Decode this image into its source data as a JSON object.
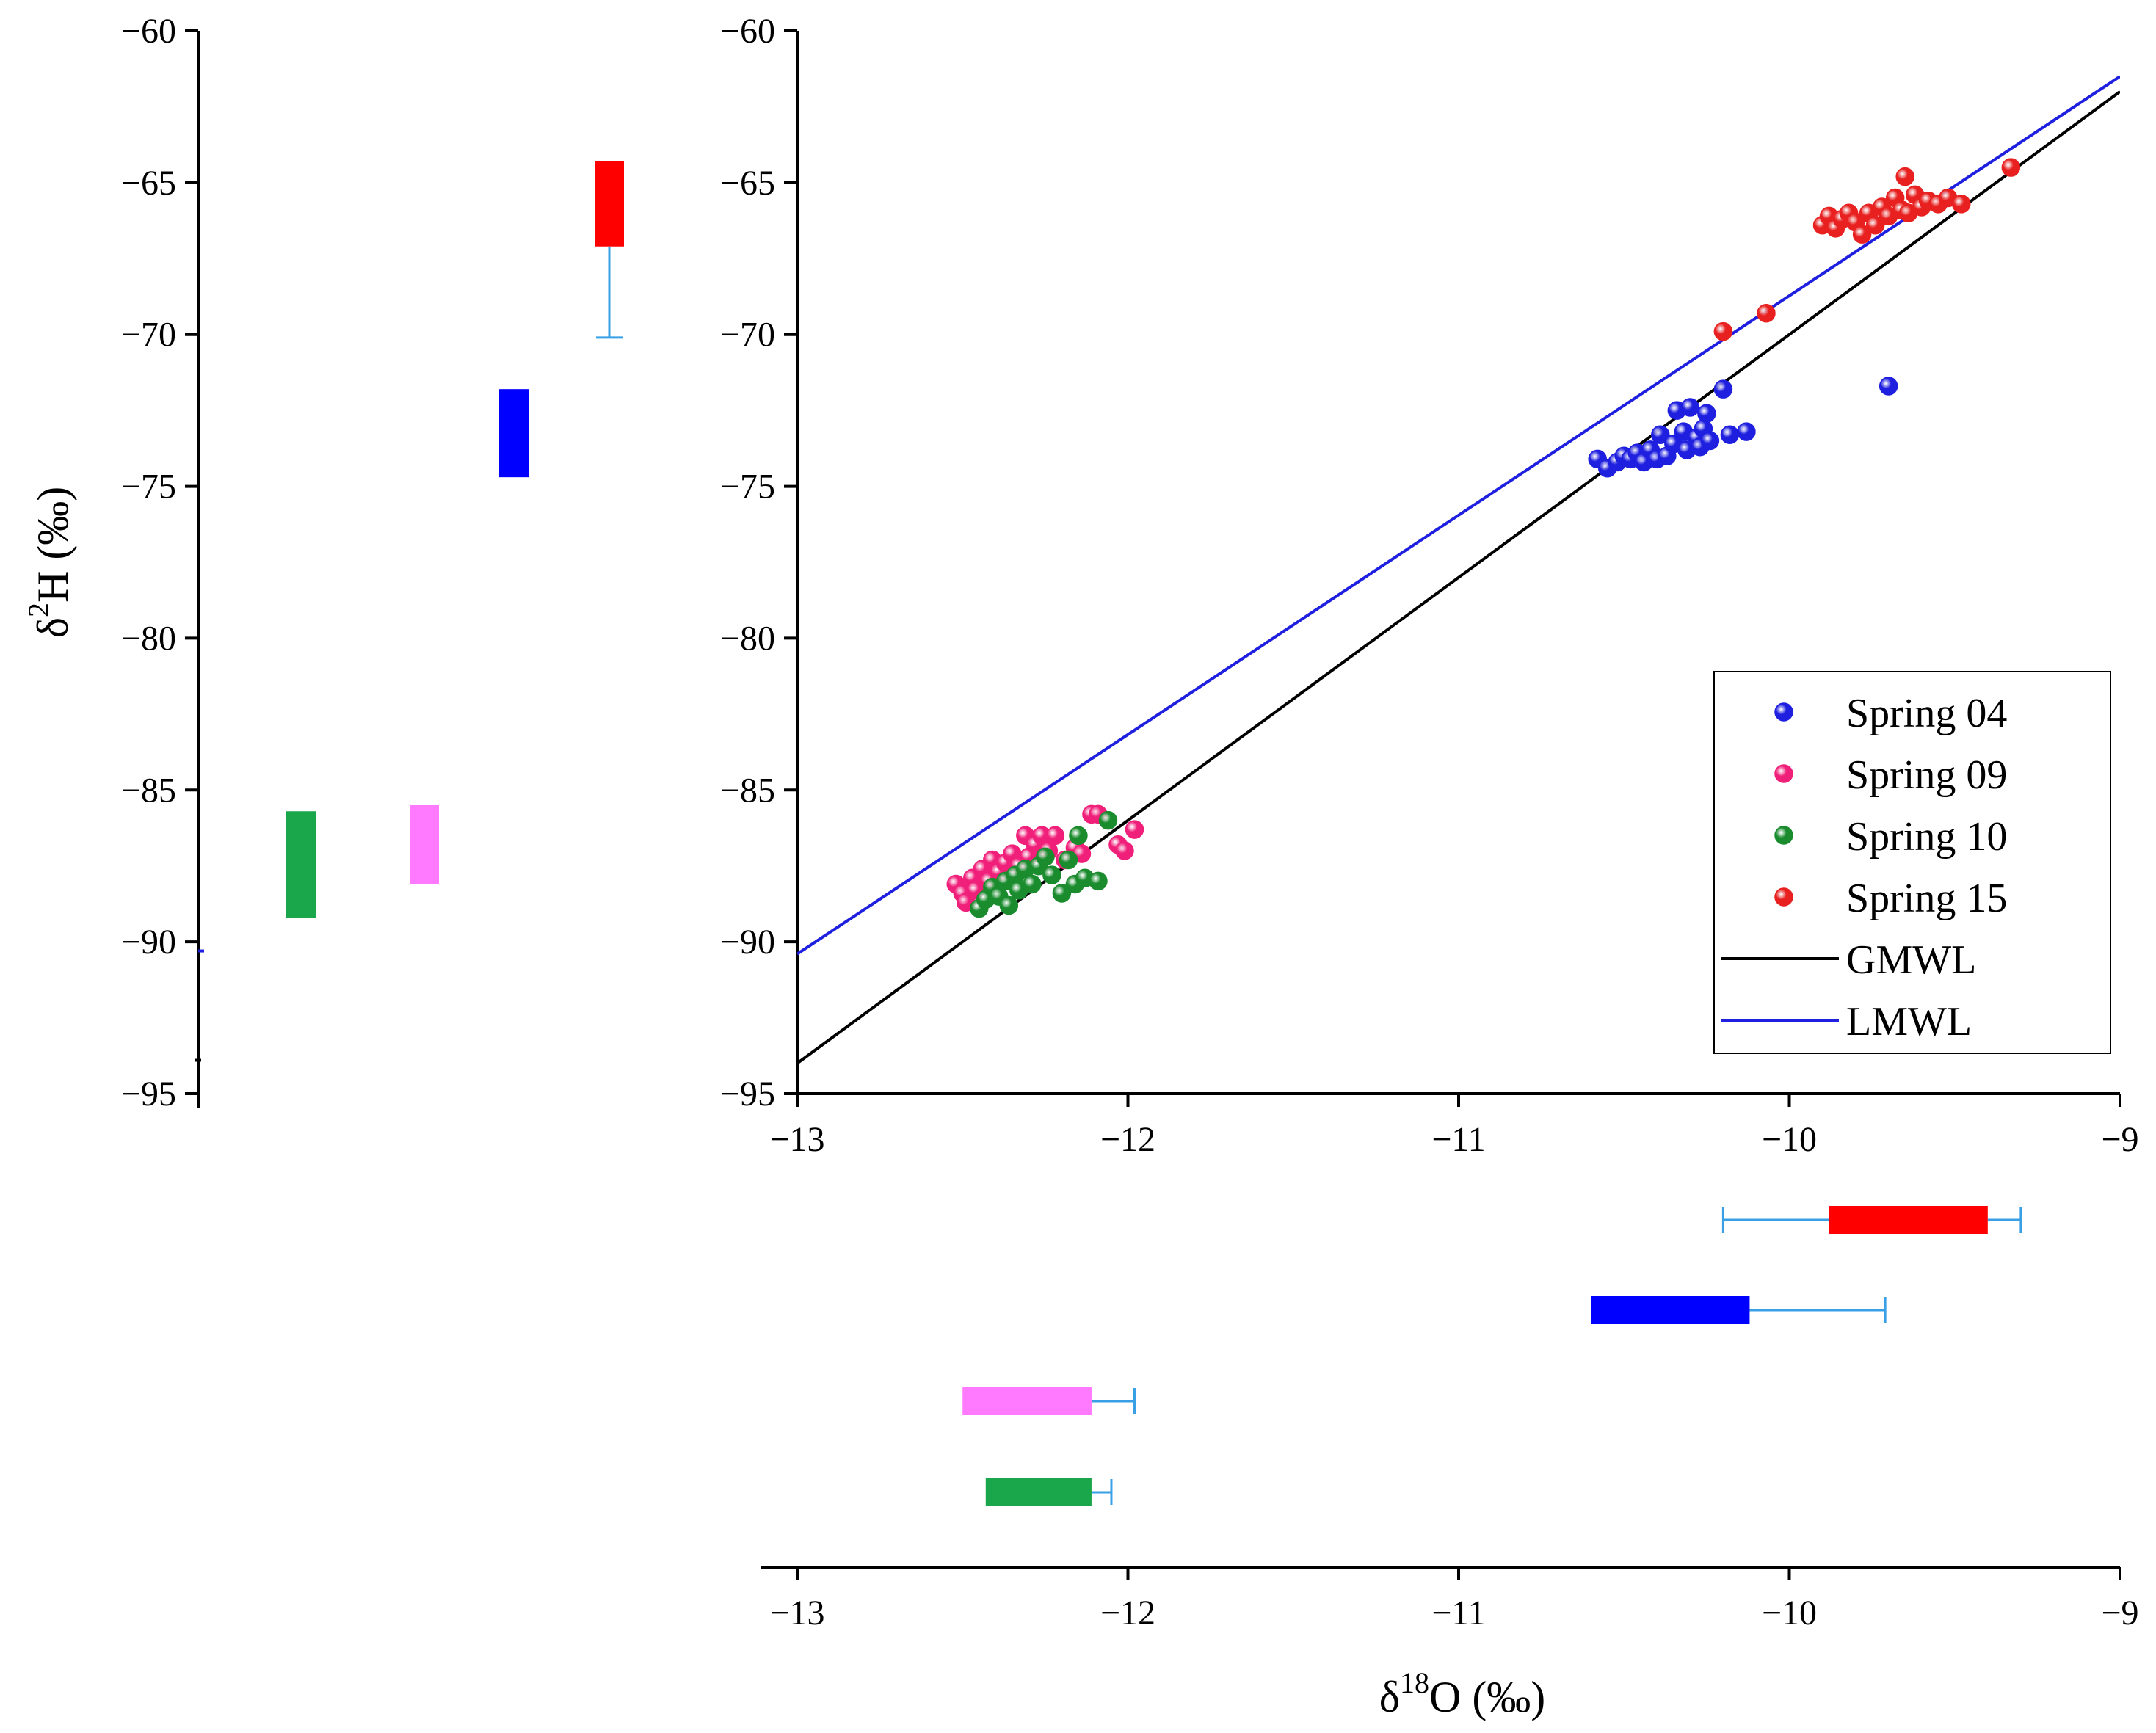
{
  "chart_data": {
    "type": "scatter",
    "main_plot": {
      "xlim": [
        -13,
        -9
      ],
      "ylim": [
        -95,
        -60
      ],
      "xticks": [
        "−13",
        "−12",
        "−11",
        "−10",
        "−9"
      ],
      "yticks": [
        "−60",
        "−65",
        "−70",
        "−75",
        "−80",
        "−85",
        "−90",
        "−95"
      ],
      "series": [
        {
          "name": "Spring 04",
          "color": "#1f1fe0",
          "points": [
            [
              -10.58,
              -74.1
            ],
            [
              -10.55,
              -74.4
            ],
            [
              -10.52,
              -74.2
            ],
            [
              -10.5,
              -74.0
            ],
            [
              -10.48,
              -74.1
            ],
            [
              -10.46,
              -73.9
            ],
            [
              -10.44,
              -74.2
            ],
            [
              -10.42,
              -73.8
            ],
            [
              -10.4,
              -74.1
            ],
            [
              -10.39,
              -73.3
            ],
            [
              -10.37,
              -74.0
            ],
            [
              -10.35,
              -73.6
            ],
            [
              -10.34,
              -72.5
            ],
            [
              -10.32,
              -73.2
            ],
            [
              -10.31,
              -73.8
            ],
            [
              -10.3,
              -72.4
            ],
            [
              -10.28,
              -73.4
            ],
            [
              -10.27,
              -73.7
            ],
            [
              -10.26,
              -73.1
            ],
            [
              -10.25,
              -72.6
            ],
            [
              -10.24,
              -73.5
            ],
            [
              -10.2,
              -71.8
            ],
            [
              -10.18,
              -73.3
            ],
            [
              -10.13,
              -73.2
            ],
            [
              -9.7,
              -71.7
            ]
          ]
        },
        {
          "name": "Spring 09",
          "color": "#f0207a",
          "points": [
            [
              -12.52,
              -88.1
            ],
            [
              -12.5,
              -88.4
            ],
            [
              -12.49,
              -88.7
            ],
            [
              -12.47,
              -87.9
            ],
            [
              -12.46,
              -88.3
            ],
            [
              -12.44,
              -87.6
            ],
            [
              -12.42,
              -88.0
            ],
            [
              -12.41,
              -87.3
            ],
            [
              -12.39,
              -87.7
            ],
            [
              -12.37,
              -87.4
            ],
            [
              -12.35,
              -87.1
            ],
            [
              -12.33,
              -87.5
            ],
            [
              -12.31,
              -86.5
            ],
            [
              -12.3,
              -87.2
            ],
            [
              -12.28,
              -86.8
            ],
            [
              -12.26,
              -86.5
            ],
            [
              -12.24,
              -87.0
            ],
            [
              -12.22,
              -86.5
            ],
            [
              -12.19,
              -87.3
            ],
            [
              -12.16,
              -86.9
            ],
            [
              -12.14,
              -87.1
            ],
            [
              -12.11,
              -85.8
            ],
            [
              -12.09,
              -85.8
            ],
            [
              -12.03,
              -86.8
            ],
            [
              -12.01,
              -87.0
            ],
            [
              -11.98,
              -86.3
            ]
          ]
        },
        {
          "name": "Spring 10",
          "color": "#1a8c2e",
          "points": [
            [
              -12.45,
              -88.9
            ],
            [
              -12.43,
              -88.6
            ],
            [
              -12.41,
              -88.2
            ],
            [
              -12.39,
              -88.5
            ],
            [
              -12.37,
              -88.0
            ],
            [
              -12.36,
              -88.8
            ],
            [
              -12.34,
              -87.8
            ],
            [
              -12.33,
              -88.3
            ],
            [
              -12.31,
              -87.6
            ],
            [
              -12.29,
              -88.1
            ],
            [
              -12.27,
              -87.5
            ],
            [
              -12.25,
              -87.2
            ],
            [
              -12.23,
              -87.8
            ],
            [
              -12.2,
              -88.4
            ],
            [
              -12.18,
              -87.3
            ],
            [
              -12.16,
              -88.1
            ],
            [
              -12.15,
              -86.5
            ],
            [
              -12.13,
              -87.9
            ],
            [
              -12.09,
              -88.0
            ],
            [
              -12.06,
              -86.0
            ]
          ]
        },
        {
          "name": "Spring 15",
          "color": "#e82020",
          "points": [
            [
              -9.9,
              -66.4
            ],
            [
              -9.88,
              -66.1
            ],
            [
              -9.86,
              -66.5
            ],
            [
              -9.84,
              -66.2
            ],
            [
              -9.82,
              -66.0
            ],
            [
              -9.8,
              -66.3
            ],
            [
              -9.78,
              -66.7
            ],
            [
              -9.76,
              -66.0
            ],
            [
              -9.74,
              -66.4
            ],
            [
              -9.72,
              -65.8
            ],
            [
              -9.7,
              -66.1
            ],
            [
              -9.68,
              -65.5
            ],
            [
              -9.66,
              -65.9
            ],
            [
              -9.65,
              -64.8
            ],
            [
              -9.64,
              -66.0
            ],
            [
              -9.62,
              -65.4
            ],
            [
              -9.6,
              -65.8
            ],
            [
              -9.58,
              -65.6
            ],
            [
              -9.55,
              -65.7
            ],
            [
              -9.52,
              -65.5
            ],
            [
              -9.48,
              -65.7
            ],
            [
              -9.33,
              -64.5
            ],
            [
              -10.2,
              -69.9
            ],
            [
              -10.07,
              -69.3
            ]
          ]
        }
      ],
      "lines": [
        {
          "name": "GMWL",
          "color": "#000000",
          "slope": 8,
          "intercept": 10
        },
        {
          "name": "LMWL",
          "color": "#1f1fe0",
          "from": [
            -13,
            -90.4
          ],
          "to": [
            -9,
            -61.5
          ]
        }
      ],
      "legend_position": "bottom-right"
    },
    "y_side_boxes": [
      {
        "series": "Spring 10",
        "color": "#1aa64a",
        "low": -89.2,
        "high": -85.7
      },
      {
        "series": "Spring 09",
        "color": "#ff7aff",
        "low": -88.1,
        "high": -85.5
      },
      {
        "series": "Spring 04",
        "color": "#0000ff",
        "low": -74.7,
        "high": -71.8
      },
      {
        "series": "Spring 15",
        "color": "#ff0000",
        "low": -67.1,
        "high": -64.3,
        "whisker": -70.1
      }
    ],
    "x_side_boxes": [
      {
        "series": "Spring 15",
        "color": "#ff0000",
        "low": -9.88,
        "high": -9.4,
        "whisker_low": -10.2,
        "whisker_high": -9.3
      },
      {
        "series": "Spring 04",
        "color": "#0000ff",
        "low": -10.6,
        "high": -10.12,
        "whisker_high": -9.71
      },
      {
        "series": "Spring 09",
        "color": "#ff7aff",
        "low": -12.5,
        "high": -12.11,
        "whisker_high": -11.98
      },
      {
        "series": "Spring 10",
        "color": "#1aa64a",
        "low": -12.43,
        "high": -12.11,
        "whisker_high": -12.05
      }
    ],
    "whisker_color": "#3aa0e6",
    "xlabel": {
      "pre": "δ",
      "sup": "18",
      "post": "O (‰)"
    },
    "ylabel": {
      "pre": "δ",
      "sup": "2",
      "post": "H (‰)"
    }
  }
}
